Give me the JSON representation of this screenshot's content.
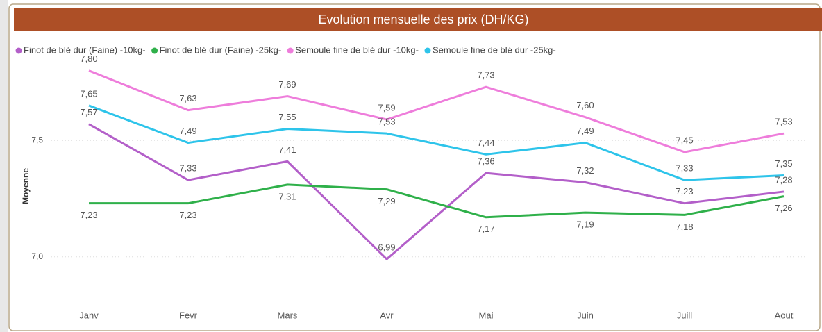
{
  "chart_data": {
    "type": "line",
    "title": "Evolution mensuelle des prix (DH/KG)",
    "ylabel": "Moyenne",
    "categories": [
      "Janv",
      "Fevr",
      "Mars",
      "Avr",
      "Mai",
      "Juin",
      "Juill",
      "Aout"
    ],
    "ylim": [
      6.85,
      7.82
    ],
    "yticks": [
      {
        "value": 7.0,
        "label": "7,0"
      },
      {
        "value": 7.5,
        "label": "7,5"
      }
    ],
    "grid": true,
    "legend": "top-left",
    "series": [
      {
        "name": "Finot de blé dur (Faine) -10kg-",
        "color": "#b35fc9",
        "values": [
          7.57,
          7.33,
          7.41,
          6.99,
          7.36,
          7.32,
          7.23,
          7.28
        ],
        "value_labels": [
          "7,57",
          "7,33",
          "7,41",
          "6,99",
          "7,36",
          "7,32",
          "7,23",
          "7,28"
        ]
      },
      {
        "name": "Finot de blé dur (Faine) -25kg-",
        "color": "#2fb04a",
        "values": [
          7.23,
          7.23,
          7.31,
          7.29,
          7.17,
          7.19,
          7.18,
          7.26
        ],
        "value_labels": [
          "7,23",
          "7,23",
          "7,31",
          "7,29",
          "7,17",
          "7,19",
          "7,18",
          "7,26"
        ]
      },
      {
        "name": "Semoule fine de blé dur -10kg-",
        "color": "#ee7ddb",
        "values": [
          7.8,
          7.63,
          7.69,
          7.59,
          7.73,
          7.6,
          7.45,
          7.53
        ],
        "value_labels": [
          "7,80",
          "7,63",
          "7,69",
          "7,59",
          "7,73",
          "7,60",
          "7,45",
          "7,53"
        ]
      },
      {
        "name": "Semoule fine de blé dur -25kg-",
        "color": "#2ec4ea",
        "values": [
          7.65,
          7.49,
          7.55,
          7.53,
          7.44,
          7.49,
          7.33,
          7.35
        ],
        "value_labels": [
          "7,65",
          "7,49",
          "7,55",
          "7,53",
          "7,44",
          "7,49",
          "7,33",
          "7,35"
        ]
      }
    ]
  }
}
